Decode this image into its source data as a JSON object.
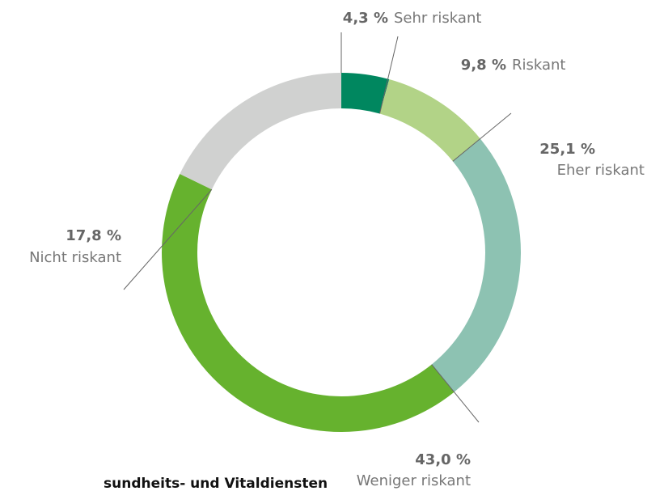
{
  "chart_data": {
    "type": "donut",
    "categories": [
      "Sehr riskant",
      "Riskant",
      "Eher riskant",
      "Weniger riskant",
      "Nicht riskant"
    ],
    "values": [
      4.3,
      9.8,
      25.1,
      43.0,
      17.8
    ],
    "value_labels": [
      "4,3 %",
      "9,8 %",
      "25,1 %",
      "43,0 %",
      "17,8 %"
    ],
    "colors": [
      "#00875f",
      "#b2d387",
      "#8dc2b2",
      "#66b22e",
      "#d0d1d0"
    ],
    "caption": "sundheits- und Vitaldiensten"
  }
}
